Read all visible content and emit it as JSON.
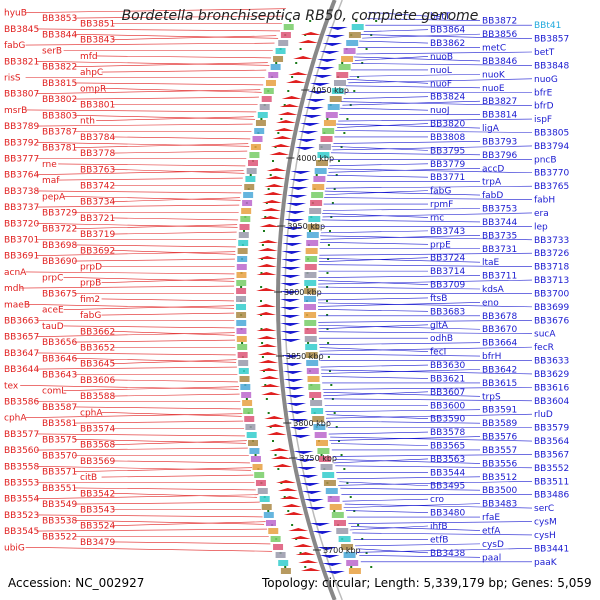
{
  "title": "Bordetella bronchiseptica RB50, complete genome",
  "footer": {
    "accession": "Accession: NC_002927",
    "topology": "Topology: circular; Length: 5,339,179 bp; Genes: 5,059"
  },
  "colors": {
    "left_strand": "#e02020",
    "right_strand": "#1a1ad0",
    "backbone": "#888888",
    "kbp_tick": "#1a7a1a",
    "highlight": "#22aadd"
  },
  "kbp_labels": [
    "4050 kbp",
    "4000 kbp",
    "3950 kbp",
    "3900 kbp",
    "3850 kbp",
    "3800 kbp",
    "3750 kbp",
    "3700 kbp"
  ],
  "left_labels": [
    "hyuB",
    "BB3853",
    "BB3851",
    "BB3845",
    "BB3844",
    "BB3843",
    "fabG",
    "serB",
    "mfd",
    "BB3821",
    "BB3822",
    "ahpC",
    "risS",
    "BB3815",
    "ompR",
    "BB3807",
    "BB3802",
    "BB3801",
    "msrB",
    "BB3803",
    "nth",
    "BB3789",
    "BB3787",
    "BB3784",
    "BB3792",
    "BB3781",
    "BB3778",
    "BB3777",
    "rne",
    "BB3763",
    "BB3764",
    "maf",
    "BB3742",
    "BB3738",
    "pepA",
    "BB3734",
    "BB3737",
    "BB3729",
    "BB3721",
    "BB3720",
    "BB3722",
    "BB3719",
    "BB3701",
    "BB3698",
    "BB3692",
    "BB3691",
    "BB3690",
    "prpD",
    "acnA",
    "prpC",
    "prpB",
    "mdh",
    "BB3675",
    "fim2",
    "maeB",
    "aceE",
    "fabG",
    "BB3663",
    "tauD",
    "BB3662",
    "BB3657",
    "BB3656",
    "BB3652",
    "BB3647",
    "BB3646",
    "BB3645",
    "BB3644",
    "BB3643",
    "BB3606",
    "tex",
    "comL",
    "BB3588",
    "BB3586",
    "BB3587",
    "cphA",
    "cphA",
    "BB3581",
    "BB3574",
    "BB3577",
    "BB3575",
    "BB3568",
    "BB3560",
    "BB3570",
    "BB3569",
    "BB3558",
    "BB3571",
    "citB",
    "BB3553",
    "BB3551",
    "BB3542",
    "BB3554",
    "BB3549",
    "BB3543",
    "BB3523",
    "BB3538",
    "BB3524",
    "BB3545",
    "BB3522",
    "BB3479",
    "ubiG"
  ],
  "right_labels": [
    "betT",
    "BB3872",
    "BBt41",
    "BB3864",
    "BB3856",
    "BB3857",
    "BB3862",
    "metC",
    "betT",
    "nuoB",
    "BB3846",
    "BB3848",
    "nuoL",
    "nuoK",
    "nuoG",
    "nuoF",
    "nuoE",
    "bfrE",
    "BB3824",
    "BB3827",
    "bfrD",
    "nuoJ",
    "BB3814",
    "ispF",
    "BB3820",
    "ligA",
    "BB3805",
    "BB3808",
    "BB3793",
    "BB3794",
    "BB3795",
    "BB3796",
    "pncB",
    "BB3779",
    "accD",
    "BB3770",
    "BB3771",
    "trpA",
    "BB3765",
    "fabG",
    "fabD",
    "fabH",
    "rpmF",
    "BB3753",
    "era",
    "rnc",
    "BB3744",
    "lep",
    "BB3743",
    "BB3735",
    "BB3733",
    "prpE",
    "BB3731",
    "BB3726",
    "BB3724",
    "ltaE",
    "BB3718",
    "BB3714",
    "BB3711",
    "BB3713",
    "BB3709",
    "kdsA",
    "BB3700",
    "ftsB",
    "eno",
    "BB3699",
    "BB3683",
    "BB3678",
    "BB3676",
    "gltA",
    "BB3670",
    "sucA",
    "odhB",
    "BB3664",
    "fecR",
    "fecI",
    "bfrH",
    "BB3633",
    "BB3630",
    "BB3642",
    "BB3629",
    "BB3621",
    "BB3615",
    "BB3616",
    "BB3607",
    "trpS",
    "BB3604",
    "BB3600",
    "BB3591",
    "rluD",
    "BB3590",
    "BB3589",
    "BB3579",
    "BB3578",
    "BB3576",
    "BB3564",
    "BB3565",
    "BB3557",
    "BB3567",
    "BB3563",
    "BB3556",
    "BB3552",
    "BB3544",
    "BB3512",
    "BB3511",
    "BB3495",
    "BB3500",
    "BB3486",
    "cro",
    "BB3483",
    "serC",
    "BB3480",
    "rfaE",
    "cysM",
    "ihfB",
    "etfA",
    "cysH",
    "etfB",
    "cysD",
    "BB3441",
    "BB3438",
    "paal",
    "paaK"
  ]
}
